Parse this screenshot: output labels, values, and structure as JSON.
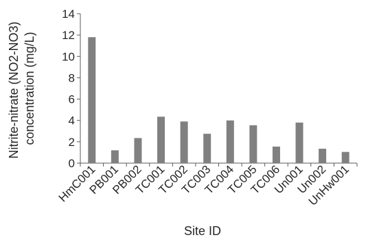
{
  "chart_data": {
    "type": "bar",
    "title": "",
    "xlabel": "Site ID",
    "ylabel": [
      "Nitrite-nitrate (NO2-NO3)",
      "concentration (mg/L)"
    ],
    "categories": [
      "HmC001",
      "PB001",
      "PB002",
      "TC001",
      "TC002",
      "TC003",
      "TC004",
      "TC005",
      "TC006",
      "Un001",
      "Un002",
      "UnHw001"
    ],
    "values": [
      11.8,
      1.2,
      2.35,
      4.35,
      3.9,
      2.75,
      4.0,
      3.55,
      1.55,
      3.8,
      1.35,
      1.05
    ],
    "ylim": [
      0,
      14
    ],
    "yticks": [
      0,
      2,
      4,
      6,
      8,
      10,
      12,
      14
    ],
    "grid": false,
    "legend": "none",
    "bar_color": "#808080",
    "axis_color": "#595959"
  }
}
